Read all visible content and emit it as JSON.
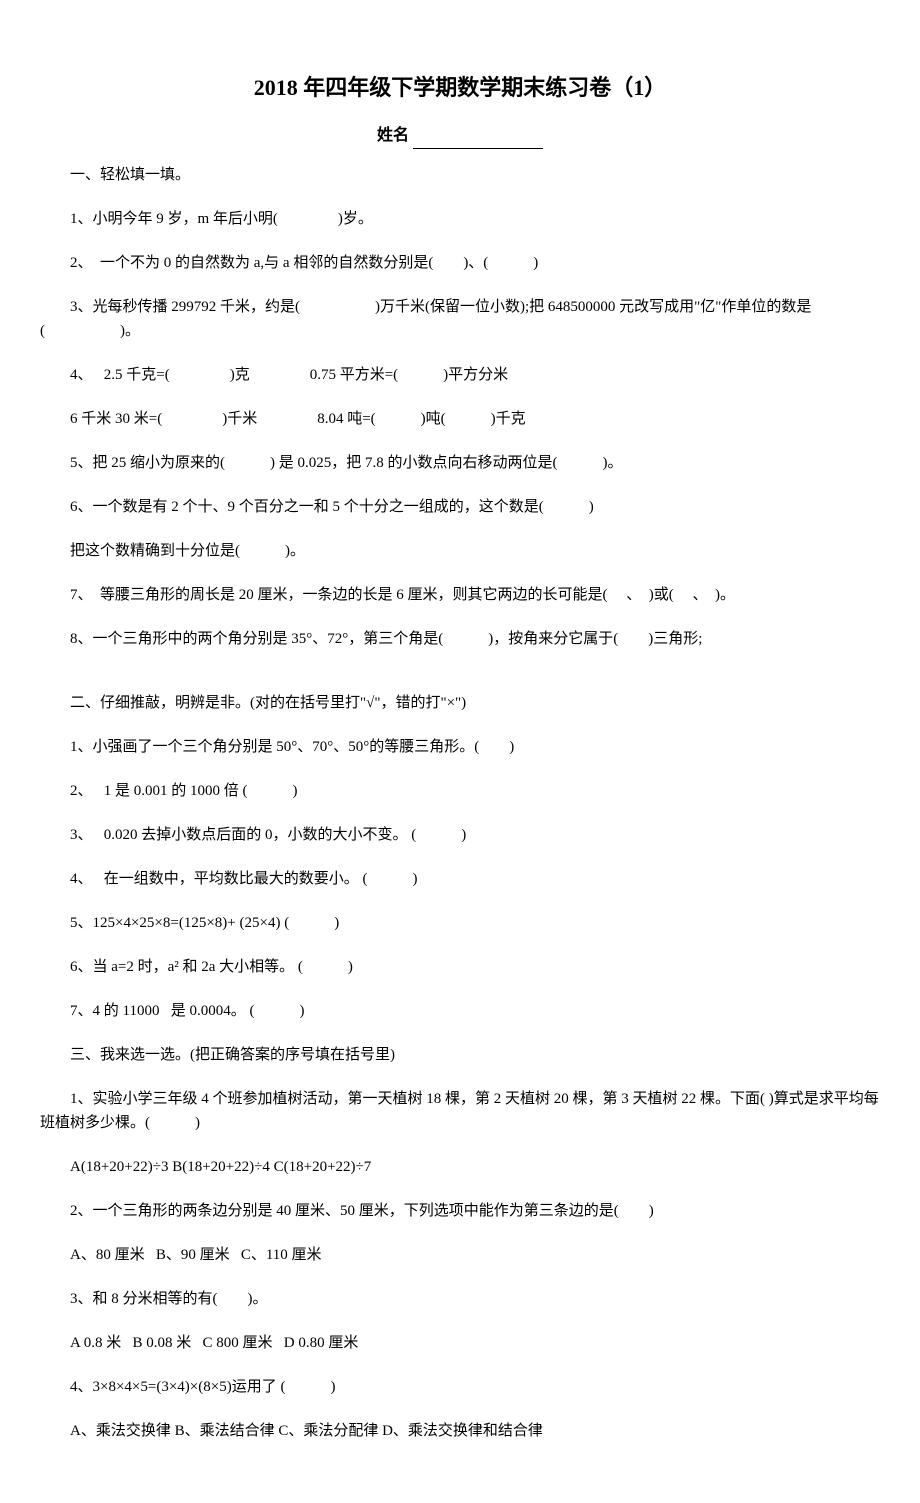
{
  "title": "2018 年四年级下学期数学期末练习卷（1）",
  "name_label": "姓名",
  "section1": {
    "header": "一、轻松填一填。",
    "q1": "1、小明今年 9 岁，m 年后小明(　　　　)岁。",
    "q2": "2、 一个不为 0 的自然数为 a,与 a 相邻的自然数分别是(　　)、(　　　)",
    "q3": "3、光每秒传播 299792 千米，约是(　　　　　)万千米(保留一位小数);把 648500000 元改写成用\"亿\"作单位的数是(　　　　　)。",
    "q4a": "4、  2.5 千克=(　　　　)克　　　　0.75 平方米=(　　　)平方分米",
    "q4b": "6 千米 30 米=(　　　　)千米　　　　8.04 吨=(　　　)吨(　　　)千克",
    "q5": "5、把 25 缩小为原来的(　　　) 是 0.025，把 7.8 的小数点向右移动两位是(　　　)。",
    "q6a": "6、一个数是有 2 个十、9 个百分之一和 5 个十分之一组成的，这个数是(　　　)",
    "q6b": "把这个数精确到十分位是(　　　)。",
    "q7": "7、 等腰三角形的周长是 20 厘米，一条边的长是 6 厘米，则其它两边的长可能是(　 、　)或(　 、　)。",
    "q8": "8、一个三角形中的两个角分别是 35°、72°，第三个角是(　　　)，按角来分它属于(　　)三角形;"
  },
  "section2": {
    "header": "二、仔细推敲，明辨是非。(对的在括号里打\"√\"，错的打\"×\")",
    "q1": "1、小强画了一个三个角分别是 50°、70°、50°的等腰三角形。(　　)",
    "q2": "2、  1 是 0.001 的 1000 倍 (　　　)",
    "q3": "3、  0.020 去掉小数点后面的 0，小数的大小不变。 (　　　)",
    "q4": "4、  在一组数中，平均数比最大的数要小。 (　　　)",
    "q5": "5、125×4×25×8=(125×8)+ (25×4) (　　　)",
    "q6": "6、当 a=2 时，a² 和 2a 大小相等。 (　　　)",
    "q7": "7、4 的 11000  是 0.0004。 (　　　)"
  },
  "section3": {
    "header": "三、我来选一选。(把正确答案的序号填在括号里)",
    "q1": "1、实验小学三年级 4 个班参加植树活动，第一天植树 18 棵，第 2 天植树 20 棵，第 3 天植树 22 棵。下面( )算式是求平均每班植树多少棵。(　　　)",
    "q1opts": "A(18+20+22)÷3 B(18+20+22)÷4 C(18+20+22)÷7",
    "q2": "2、一个三角形的两条边分别是 40 厘米、50 厘米，下列选项中能作为第三条边的是(　　)",
    "q2opts": "A、80 厘米  B、90 厘米  C、110 厘米",
    "q3": "3、和 8 分米相等的有(　　)。",
    "q3opts": "A 0.8 米  B 0.08 米  C 800 厘米  D 0.80 厘米",
    "q4": "4、3×8×4×5=(3×4)×(8×5)运用了 (　　　)",
    "q4opts": "A、乘法交换律 B、乘法结合律 C、乘法分配律 D、乘法交换律和结合律"
  }
}
